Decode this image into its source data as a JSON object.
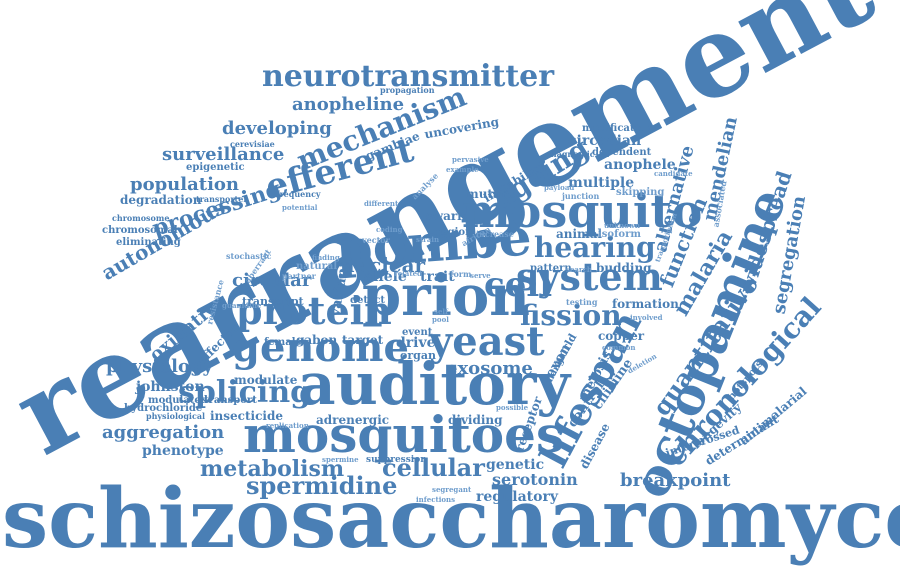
{
  "colors": {
    "primary": "#4a7fb5",
    "secondary": "#5b8fc4",
    "light": "#6f9dcc",
    "background": "#ffffff"
  },
  "words": {
    "schizosaccharomyces": "schizosaccharomyces",
    "rearrangement": "rearrangement",
    "auditory": "auditory",
    "mosquitoes": "mosquitoes",
    "mosquito": "mosquito",
    "pombe": "pombe",
    "prion": "prion",
    "genome": "genome",
    "protein": "protein",
    "yeast": "yeast",
    "system": "system",
    "octopamine": "octopamine",
    "lifespan": "lifespan",
    "neurotransmitter": "neurotransmitter",
    "mechanism": "mechanism",
    "efferent": "efferent",
    "ageing": "ageing",
    "hearing": "hearing",
    "fission": "fission",
    "cell": "cell",
    "splicing": "splicing",
    "spermidine": "spermidine",
    "metabolism": "metabolism",
    "cellular": "cellular",
    "chronological": "chronological",
    "quantitative": "quantitative",
    "malaria": "malaria",
    "function": "function",
    "alternative": "alternative",
    "mendelian": "mendelian",
    "widespread": "widespread",
    "segregation": "segregation",
    "anopheline": "anopheline",
    "developing": "developing",
    "surveillance": "surveillance",
    "population": "population",
    "processing": "processing",
    "autonomous": "autonomous",
    "oxidative": "oxidative",
    "physiology": "physiology",
    "johnston": "johnston",
    "aggregation": "aggregation",
    "phenotype": "phenotype",
    "degradation": "degradation",
    "epigenetic": "epigenetic",
    "circadian": "circadian",
    "anophele": "anophele",
    "multiple": "multiple",
    "exosome": "exosome",
    "nuclear": "nuclear",
    "circular": "circular",
    "serotonin": "serotonin",
    "breakpoint": "breakpoint",
    "regulatory": "regulatory",
    "genetic": "genetic",
    "insecticide": "insecticide",
    "adrenergic": "adrenergic",
    "dividing": "dividing",
    "modulate": "modulate",
    "transcript": "transcript",
    "exon": "exon",
    "meiosis": "meiosis",
    "control": "control",
    "ciliciine": "ciliciine",
    "disease": "disease",
    "receptor": "receptor",
    "longevity": "longevity",
    "hotspots": "hotspots",
    "determinant": "determinant",
    "antimalarial": "antimalarial",
    "intercrossed": "intercrossed",
    "copper": "copper",
    "formation": "formation",
    "budding": "budding",
    "pattern": "pattern",
    "animal": "animal",
    "mutant": "mutant",
    "instability": "instability",
    "swarm": "swarm",
    "modification": "modification",
    "dependent": "dependent",
    "diagnostic": "diagnostic",
    "gambiae": "gambiae",
    "uncovering": "uncovering",
    "propagation": "propagation",
    "cerevisiae": "cerevisiae",
    "chromosomal": "chromosomal",
    "chromosome": "chromosome",
    "eliminating": "eliminating",
    "transporter": "transporter",
    "frequency": "frequency",
    "variant": "variant",
    "allele": "allele",
    "trait": "trait",
    "region": "region",
    "drive": "drive",
    "organ": "organ",
    "event": "event",
    "target": "target",
    "detect": "detect",
    "gabon": "gabon",
    "female": "female",
    "effector": "effector",
    "modulated": "modulated",
    "hydrochloride": "hydrochloride",
    "physiological": "physiological",
    "suppression": "suppression",
    "transport": "transport",
    "world": "world",
    "change": "change",
    "skipping": "skipping",
    "junction": "junction",
    "isoform": "isoform",
    "unknown": "unknown",
    "associated": "associated",
    "candidate": "candidate",
    "transcription": "transcription",
    "increase": "increase",
    "african": "african",
    "pervasive": "pervasive",
    "analyse": "analyse",
    "natural": "natural",
    "partner": "partner",
    "guanidine": "guanidine",
    "resistance": "resistance",
    "stochastic": "stochastic",
    "aberrant": "aberrant",
    "potential": "potential",
    "different": "different",
    "replication": "replication",
    "spermine": "spermine",
    "infections": "infections",
    "segregant": "segregant",
    "involved": "involved",
    "deletion": "deletion",
    "common": "common",
    "testing": "testing",
    "search": "search",
    "related": "related",
    "form": "form",
    "serve": "serve",
    "pool": "pool",
    "self": "self",
    "payload": "payload",
    "strain": "strain",
    "finding": "finding",
    "coding": "coding",
    "vector": "vector",
    "possible": "possible",
    "example": "example"
  }
}
